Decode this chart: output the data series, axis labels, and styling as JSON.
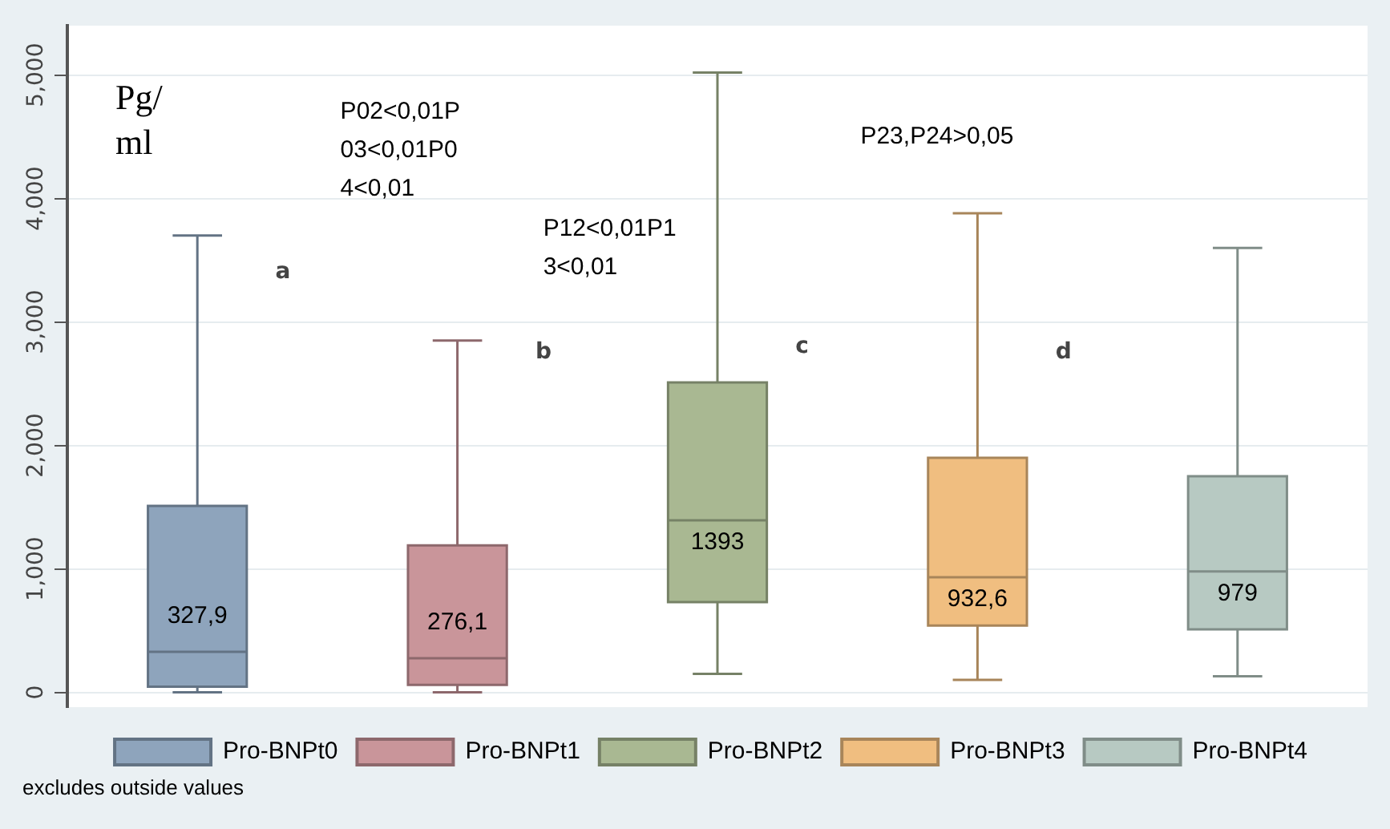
{
  "chart_data": {
    "type": "box",
    "ylabel": "Pg/\nml",
    "categories": [
      null,
      null,
      null,
      null,
      null
    ],
    "series": [
      {
        "name": "Pro-BNPt0",
        "color": "#8ea4bc",
        "boxes": [
          {
            "low": 0,
            "q1": 45,
            "median": 327.9,
            "q3": 1510,
            "high": 3700
          },
          null,
          null,
          null,
          null
        ],
        "value_labels": [
          "327,9",
          null,
          null,
          null,
          null
        ]
      },
      {
        "name": "Pro-BNPt1",
        "color": "#c9959a",
        "boxes": [
          null,
          {
            "low": 0,
            "q1": 60,
            "median": 276.1,
            "q3": 1190,
            "high": 2850
          },
          null,
          null,
          null
        ],
        "value_labels": [
          null,
          "276,1",
          null,
          null,
          null
        ]
      },
      {
        "name": "Pro-BNPt2",
        "color": "#a9b892",
        "boxes": [
          null,
          null,
          {
            "low": 150,
            "q1": 730,
            "median": 1393,
            "q3": 2510,
            "high": 5020
          },
          null,
          null
        ],
        "value_labels": [
          null,
          null,
          "1393",
          null,
          null
        ]
      },
      {
        "name": "Pro-BNPt3",
        "color": "#f0be80",
        "boxes": [
          null,
          null,
          null,
          {
            "low": 100,
            "q1": 540,
            "median": 932.6,
            "q3": 1900,
            "high": 3880
          },
          null
        ],
        "value_labels": [
          null,
          null,
          null,
          "932,6",
          null
        ]
      },
      {
        "name": "Pro-BNPt4",
        "color": "#b7c9c2",
        "boxes": [
          null,
          null,
          null,
          null,
          {
            "low": 130,
            "q1": 510,
            "median": 979,
            "q3": 1750,
            "high": 3600
          }
        ],
        "value_labels": [
          null,
          null,
          null,
          null,
          "979"
        ]
      }
    ],
    "annotations": [
      "a",
      "b",
      "c",
      "d",
      "P02<0,01P\n03<0,01P0\n4<0,01",
      "P12<0,01P1\n3<0,01",
      "P23,P24>0,05",
      "excludes outside values"
    ],
    "ylim": [
      -120,
      5400
    ],
    "yticks": [
      0,
      {
        "value": 1000,
        "label": "1,000"
      },
      {
        "value": 2000,
        "label": "2,000"
      },
      {
        "value": 3000,
        "label": "3,000"
      },
      {
        "value": 4000,
        "label": "4,000"
      },
      {
        "value": 5000,
        "label": "5,000"
      }
    ],
    "grid": "y",
    "legend": "bottom"
  }
}
